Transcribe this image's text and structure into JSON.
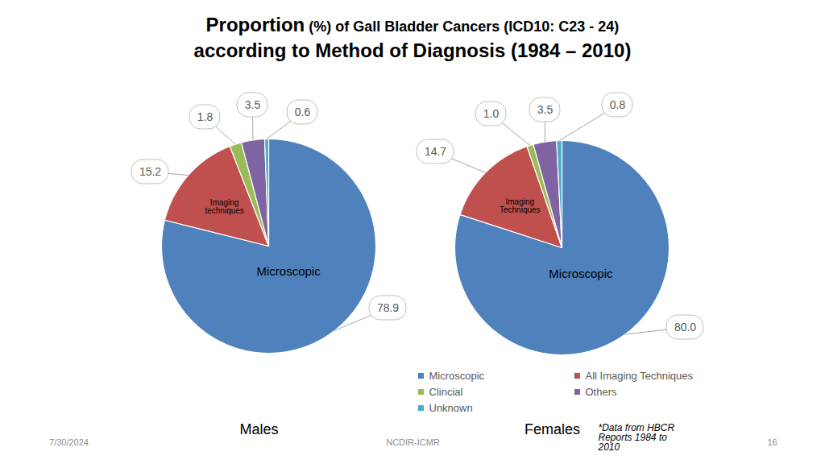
{
  "title": "Proportion (%) of Gall Bladder Cancers (ICD10: C23 - 24)",
  "subtitle": "according to Method of Diagnosis (1984 – 2010)",
  "chart_data": [
    {
      "type": "pie",
      "title": "Males",
      "categories": [
        "Microscopic",
        "All Imaging Techniques",
        "Clincial",
        "Others",
        "Unknown"
      ],
      "values": [
        78.9,
        15.2,
        1.8,
        3.5,
        0.6
      ],
      "colors": [
        "#4f81bd",
        "#c0504d",
        "#9bbb59",
        "#8064a2",
        "#4bacc6"
      ],
      "slice_labels": [
        "Microscopic",
        "Imaging techniques",
        null,
        null,
        null
      ],
      "data_labels": true
    },
    {
      "type": "pie",
      "title": "Females",
      "categories": [
        "Microscopic",
        "All Imaging Techniques",
        "Clincial",
        "Others",
        "Unknown"
      ],
      "values": [
        80.0,
        14.7,
        1.0,
        3.5,
        0.8
      ],
      "value_labels": [
        "80.0",
        "14.7",
        "1.0",
        "3.5",
        "0.8"
      ],
      "colors": [
        "#4f81bd",
        "#c0504d",
        "#9bbb59",
        "#8064a2",
        "#4bacc6"
      ],
      "slice_labels": [
        "Microscopic",
        "Imaging Techniques",
        null,
        null,
        null
      ],
      "data_labels": true,
      "legend": "bottom"
    }
  ],
  "footer": {
    "date": "7/30/2024",
    "source": "NCDIR-ICMR",
    "page": "16",
    "note": "*Data from HBCR Reports 1984 to 2010"
  }
}
